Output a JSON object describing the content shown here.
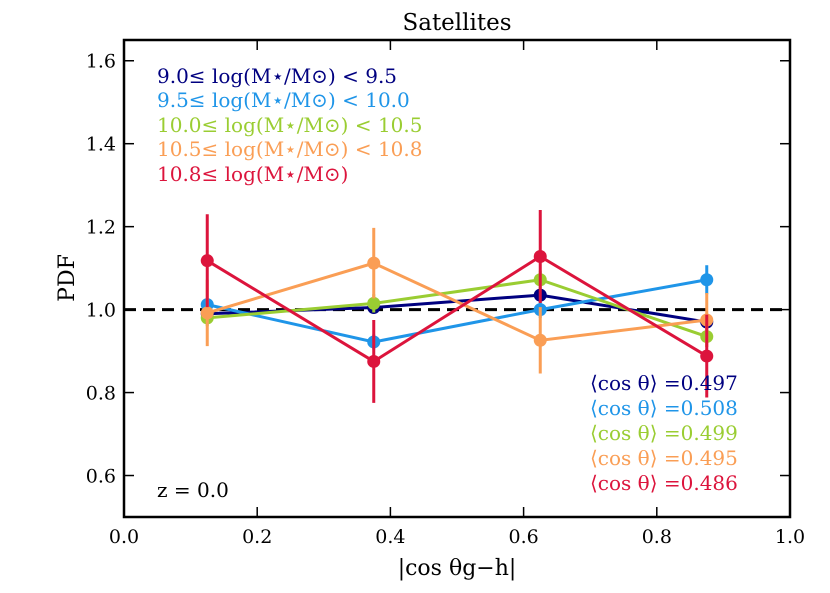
{
  "chart_data": {
    "type": "line",
    "title": "Satellites",
    "xlabel": "|cos θg−h|",
    "ylabel": "PDF",
    "xlim": [
      0.0,
      1.0
    ],
    "ylim": [
      0.5,
      1.65
    ],
    "xticks": [
      0.0,
      0.2,
      0.4,
      0.6,
      0.8,
      1.0
    ],
    "xtick_labels": [
      "0.0",
      "0.2",
      "0.4",
      "0.6",
      "0.8",
      "1.0"
    ],
    "yticks": [
      0.6,
      0.8,
      1.0,
      1.2,
      1.4,
      1.6
    ],
    "ytick_labels": [
      "0.6",
      "0.8",
      "1.0",
      "1.2",
      "1.4",
      "1.6"
    ],
    "reference_line": {
      "y": 1.0,
      "style": "dashed",
      "color": "#000000"
    },
    "x": [
      0.125,
      0.375,
      0.625,
      0.875
    ],
    "annotation": "z = 0.0",
    "series": [
      {
        "name": "9.0≤ log(M⋆/M⊙) < 9.5",
        "color": "#000080",
        "values": [
          0.99,
          1.005,
          1.035,
          0.97
        ],
        "errors": [
          0.01,
          0.012,
          0.012,
          0.015
        ],
        "mean_label": "⟨cos θ⟩ =0.497"
      },
      {
        "name": "9.5≤ log(M⋆/M⊙) < 10.0",
        "color": "#1f95e8",
        "values": [
          1.012,
          0.922,
          1.0,
          1.072
        ],
        "errors": [
          0.015,
          0.018,
          0.02,
          0.035
        ],
        "mean_label": "⟨cos θ⟩ =0.508"
      },
      {
        "name": "10.0≤ log(M⋆/M⊙) < 10.5",
        "color": "#9acd32",
        "values": [
          0.98,
          1.015,
          1.072,
          0.935
        ],
        "errors": [
          0.02,
          0.022,
          0.022,
          0.025
        ],
        "mean_label": "⟨cos θ⟩ =0.499"
      },
      {
        "name": "10.5≤ log(M⋆/M⊙) < 10.8",
        "color": "#fa9e55",
        "values": [
          0.992,
          1.112,
          0.926,
          0.975
        ],
        "errors": [
          0.08,
          0.085,
          0.08,
          0.065
        ],
        "mean_label": "⟨cos θ⟩ =0.495"
      },
      {
        "name": "10.8≤ log(M⋆/M⊙)",
        "color": "#dc143c",
        "values": [
          1.118,
          0.875,
          1.128,
          0.888
        ],
        "errors": [
          0.112,
          0.1,
          0.112,
          0.1
        ],
        "mean_label": "⟨cos θ⟩ =0.486"
      }
    ]
  }
}
